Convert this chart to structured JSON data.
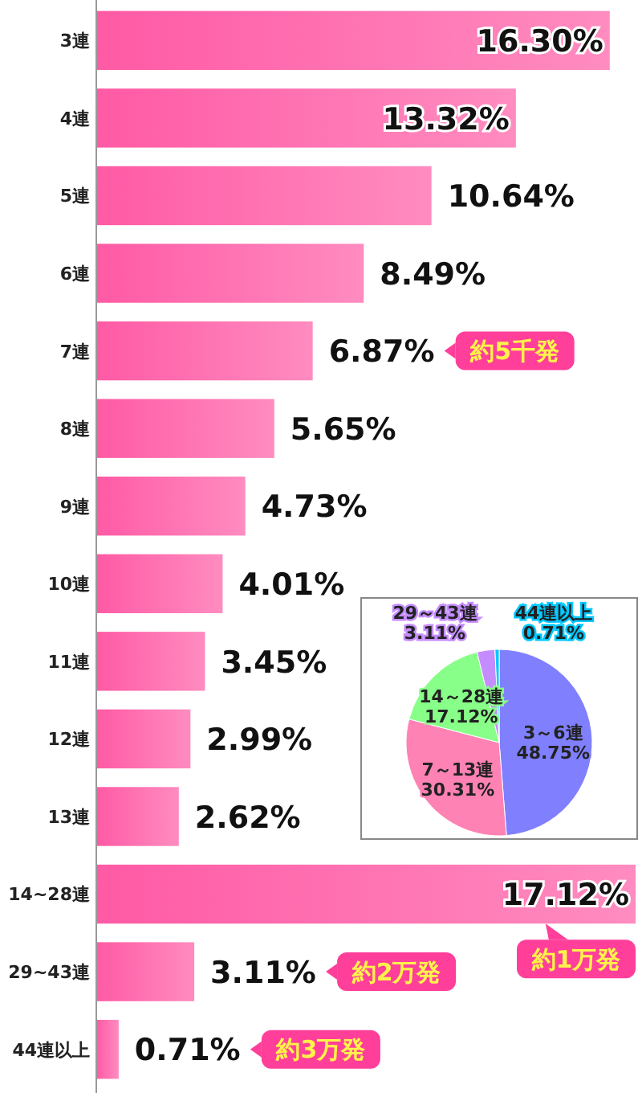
{
  "chart_data": [
    {
      "type": "bar",
      "orientation": "horizontal",
      "categories": [
        "3連",
        "4連",
        "5連",
        "6連",
        "7連",
        "8連",
        "9連",
        "10連",
        "11連",
        "12連",
        "13連",
        "14~28連",
        "29~43連",
        "44連以上"
      ],
      "values": [
        16.3,
        13.32,
        10.64,
        8.49,
        6.87,
        5.65,
        4.73,
        4.01,
        3.45,
        2.99,
        2.62,
        17.12,
        3.11,
        0.71
      ],
      "value_labels": [
        "16.30%",
        "13.32%",
        "10.64%",
        "8.49%",
        "6.87%",
        "5.65%",
        "4.73%",
        "4.01%",
        "3.45%",
        "2.99%",
        "2.62%",
        "17.12%",
        "3.11%",
        "0.71%"
      ],
      "color": "#ff5aa5",
      "annotations": [
        "約5千発",
        "約1万発",
        "約2万発",
        "約3万発"
      ]
    },
    {
      "type": "pie",
      "categories": [
        "3～6連",
        "7～13連",
        "14～28連",
        "29～43連",
        "44連以上"
      ],
      "values": [
        48.75,
        30.31,
        17.12,
        3.11,
        0.71
      ],
      "value_labels": [
        "48.75%",
        "30.31%",
        "17.12%",
        "3.11%",
        "0.71%"
      ],
      "colors": [
        "#8080ff",
        "#ff82b4",
        "#88ff88",
        "#c58cff",
        "#00c8ff"
      ]
    }
  ]
}
